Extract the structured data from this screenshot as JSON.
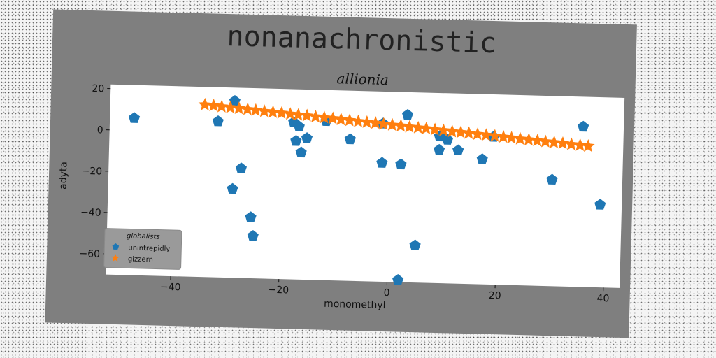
{
  "chart_data": {
    "type": "scatter",
    "title": "nonanachronistic",
    "subtitle": "allionia",
    "xlabel": "monomethyl",
    "ylabel": "adyta",
    "xlim": [
      -52,
      43
    ],
    "ylim": [
      -70,
      22
    ],
    "xticks": [
      -40,
      -20,
      0,
      20,
      40
    ],
    "yticks": [
      20,
      0,
      -20,
      -40,
      -60
    ],
    "xtick_labels": [
      "−40",
      "−20",
      "0",
      "20",
      "40"
    ],
    "ytick_labels": [
      "20",
      "0",
      "−20",
      "−40",
      "−60"
    ],
    "grid": false,
    "rotation_deg": 1.5,
    "legend": {
      "title": "globalists",
      "position": "lower-left"
    },
    "colors": {
      "panel": "#7f7f7f",
      "plot_bg": "#ffffff",
      "series_1": "#1f77b4",
      "series_2": "#ff7f0e",
      "legend_bg": "#9a9a9a"
    },
    "series": [
      {
        "name": "unintrepidly",
        "marker": "pentagon",
        "color": "#1f77b4",
        "points": [
          [
            -47.5,
            6
          ],
          [
            -32,
            5.5
          ],
          [
            -29,
            15.5
          ],
          [
            -27.5,
            -17
          ],
          [
            -29,
            -27
          ],
          [
            -25.5,
            -40.5
          ],
          [
            -25,
            -49.5
          ],
          [
            -18,
            6
          ],
          [
            -17.5,
            -3
          ],
          [
            -17,
            4
          ],
          [
            -16.5,
            -8.5
          ],
          [
            -15.5,
            -1.5
          ],
          [
            -12,
            7
          ],
          [
            -7.5,
            -1.5
          ],
          [
            -1.5,
            6.5
          ],
          [
            -1.5,
            -12.5
          ],
          [
            2,
            -13
          ],
          [
            3,
            11
          ],
          [
            2,
            -69
          ],
          [
            5,
            -52
          ],
          [
            9,
            1
          ],
          [
            9,
            -5.5
          ],
          [
            10.5,
            -0.5
          ],
          [
            12.5,
            -5.5
          ],
          [
            17,
            -9.5
          ],
          [
            19,
            1.5
          ],
          [
            30,
            -18.5
          ],
          [
            35.5,
            7.5
          ],
          [
            39,
            -30
          ]
        ]
      },
      {
        "name": "gizzern",
        "marker": "star",
        "color": "#ff7f0e",
        "points": [
          [
            -34.5,
            13.3
          ],
          [
            -32.9,
            13.0
          ],
          [
            -31.4,
            12.6
          ],
          [
            -29.8,
            12.3
          ],
          [
            -28.2,
            12.0
          ],
          [
            -26.6,
            11.6
          ],
          [
            -25.1,
            11.3
          ],
          [
            -23.5,
            10.9
          ],
          [
            -21.9,
            10.6
          ],
          [
            -20.3,
            10.3
          ],
          [
            -18.7,
            9.9
          ],
          [
            -17.2,
            9.6
          ],
          [
            -15.6,
            9.3
          ],
          [
            -14.0,
            8.9
          ],
          [
            -12.4,
            8.6
          ],
          [
            -10.8,
            8.3
          ],
          [
            -9.3,
            7.9
          ],
          [
            -7.7,
            7.6
          ],
          [
            -6.1,
            7.2
          ],
          [
            -4.5,
            6.9
          ],
          [
            -2.9,
            6.6
          ],
          [
            -1.4,
            6.2
          ],
          [
            0.2,
            5.9
          ],
          [
            1.8,
            5.6
          ],
          [
            3.4,
            5.2
          ],
          [
            5.0,
            4.9
          ],
          [
            6.5,
            4.6
          ],
          [
            8.1,
            4.2
          ],
          [
            9.7,
            3.9
          ],
          [
            11.3,
            3.5
          ],
          [
            12.9,
            3.2
          ],
          [
            14.4,
            2.9
          ],
          [
            16.0,
            2.5
          ],
          [
            17.6,
            2.2
          ],
          [
            19.2,
            1.9
          ],
          [
            20.8,
            1.5
          ],
          [
            22.3,
            1.2
          ],
          [
            23.9,
            0.8
          ],
          [
            25.5,
            0.5
          ],
          [
            27.1,
            0.2
          ],
          [
            28.6,
            -0.2
          ],
          [
            30.2,
            -0.5
          ],
          [
            31.8,
            -0.8
          ],
          [
            33.4,
            -1.2
          ],
          [
            35.0,
            -1.5
          ],
          [
            36.5,
            -1.8
          ]
        ]
      }
    ]
  }
}
